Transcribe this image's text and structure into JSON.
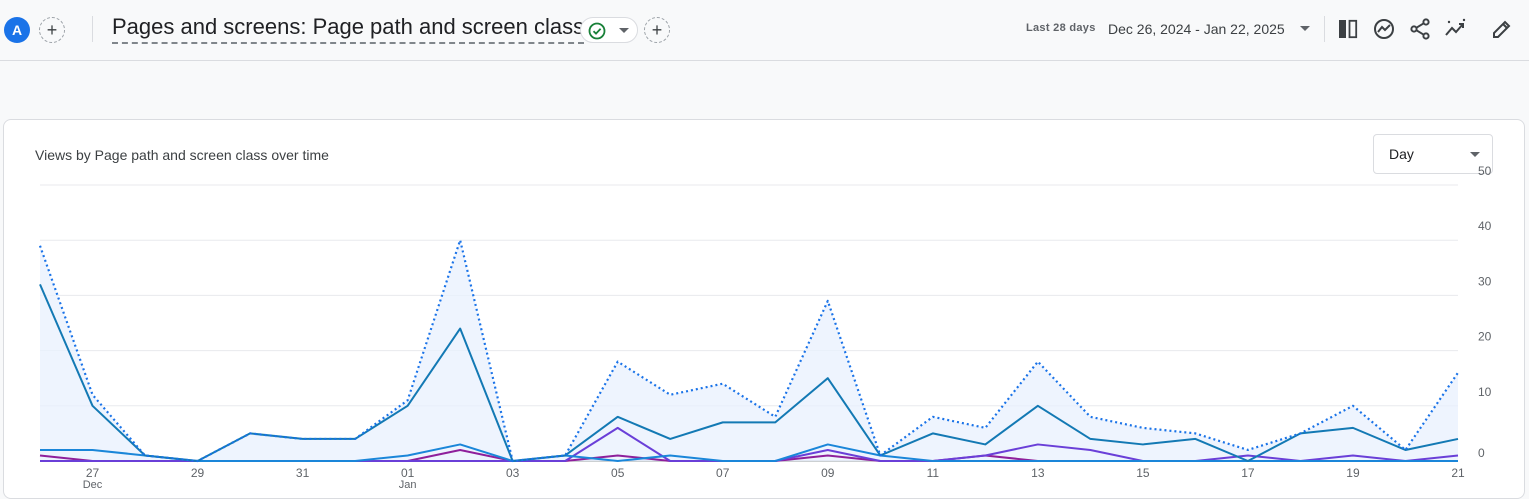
{
  "header": {
    "avatar_letter": "A",
    "title": "Pages and screens: Page path and screen class",
    "date_label": "Last 28 days",
    "date_range": "Dec 26, 2024 - Jan 22, 2025",
    "icons": [
      "compare-icon",
      "insights-icon",
      "share-icon",
      "trend-icon",
      "edit-icon"
    ]
  },
  "card": {
    "title": "Views by Page path and screen class over time",
    "granularity": "Day"
  },
  "colors": {
    "total": "#1a73e8",
    "series1": "#1379b4",
    "series2": "#1a86d9",
    "series3": "#6a3fd8",
    "series4": "#8e1f9b",
    "fill": "#e8f0fe"
  },
  "chart_data": {
    "type": "line",
    "x": [
      "Dec 26",
      "Dec 27",
      "Dec 28",
      "Dec 29",
      "Dec 30",
      "Dec 31",
      "Jan 01",
      "Jan 02",
      "Jan 03",
      "Jan 04",
      "Jan 05",
      "Jan 06",
      "Jan 07",
      "Jan 08",
      "Jan 09",
      "Jan 10",
      "Jan 11",
      "Jan 12",
      "Jan 13",
      "Jan 14",
      "Jan 15",
      "Jan 16",
      "Jan 17",
      "Jan 18",
      "Jan 19",
      "Jan 20",
      "Jan 21",
      "Jan 22"
    ],
    "x_ticks": [
      {
        "label": "27",
        "sub": "Dec"
      },
      {
        "label": "29",
        "sub": ""
      },
      {
        "label": "31",
        "sub": ""
      },
      {
        "label": "01",
        "sub": "Jan"
      },
      {
        "label": "03",
        "sub": ""
      },
      {
        "label": "05",
        "sub": ""
      },
      {
        "label": "07",
        "sub": ""
      },
      {
        "label": "09",
        "sub": ""
      },
      {
        "label": "11",
        "sub": ""
      },
      {
        "label": "13",
        "sub": ""
      },
      {
        "label": "15",
        "sub": ""
      },
      {
        "label": "17",
        "sub": ""
      },
      {
        "label": "19",
        "sub": ""
      },
      {
        "label": "21",
        "sub": ""
      }
    ],
    "ylim": [
      0,
      50
    ],
    "y_ticks": [
      "0",
      "10",
      "20",
      "30",
      "40",
      "50"
    ],
    "grid": true,
    "series": [
      {
        "style": "dotted-total",
        "values": [
          39,
          12,
          1,
          0,
          5,
          4,
          4,
          11,
          40,
          0,
          1,
          18,
          12,
          14,
          8,
          29,
          1,
          8,
          6,
          18,
          8,
          6,
          5,
          2,
          5,
          10,
          2,
          16
        ]
      },
      {
        "values": [
          32,
          10,
          1,
          0,
          5,
          4,
          4,
          10,
          24,
          0,
          1,
          8,
          4,
          7,
          7,
          15,
          1,
          5,
          3,
          10,
          4,
          3,
          4,
          0,
          5,
          6,
          2,
          4
        ]
      },
      {
        "values": [
          2,
          2,
          1,
          0,
          0,
          0,
          0,
          1,
          3,
          0,
          1,
          0,
          1,
          0,
          0,
          3,
          1,
          0,
          0,
          0,
          0,
          0,
          0,
          0,
          0,
          0,
          0,
          0
        ]
      },
      {
        "values": [
          0,
          0,
          0,
          0,
          0,
          0,
          0,
          0,
          0,
          0,
          0,
          6,
          0,
          0,
          0,
          2,
          0,
          0,
          1,
          3,
          2,
          0,
          0,
          1,
          0,
          1,
          0,
          1
        ]
      },
      {
        "values": [
          1,
          0,
          0,
          0,
          0,
          0,
          0,
          0,
          2,
          0,
          0,
          1,
          0,
          0,
          0,
          1,
          0,
          0,
          1,
          0,
          0,
          0,
          0,
          0,
          0,
          0,
          0,
          0
        ]
      }
    ]
  }
}
